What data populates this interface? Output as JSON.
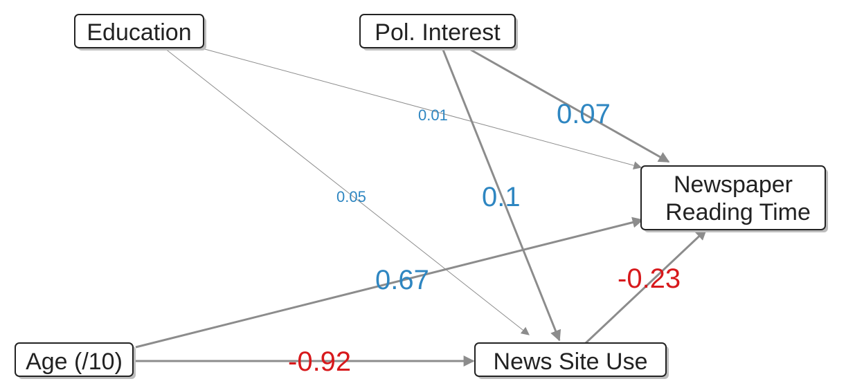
{
  "nodes": {
    "education": "Education",
    "pol_interest": "Pol. Interest",
    "newspaper_line1": "Newspaper",
    "newspaper_line2": "Reading Time",
    "age": "Age (/10)",
    "news_site_use": "News Site Use"
  },
  "edges": [
    {
      "from": "Education",
      "to": "Newspaper Reading Time",
      "coefficient": "0.01"
    },
    {
      "from": "Education",
      "to": "News Site Use",
      "coefficient": "0.05"
    },
    {
      "from": "Pol. Interest",
      "to": "Newspaper Reading Time",
      "coefficient": "0.07"
    },
    {
      "from": "Pol. Interest",
      "to": "News Site Use",
      "coefficient": "0.1"
    },
    {
      "from": "Age (/10)",
      "to": "Newspaper Reading Time",
      "coefficient": "0.67"
    },
    {
      "from": "Age (/10)",
      "to": "News Site Use",
      "coefficient": "-0.92"
    },
    {
      "from": "News Site Use",
      "to": "Newspaper Reading Time",
      "coefficient": "-0.23"
    }
  ],
  "colors": {
    "positive": "#2e86c1",
    "negative": "#d7191c",
    "edge": "#8c8c8c",
    "node_border": "#222222"
  }
}
